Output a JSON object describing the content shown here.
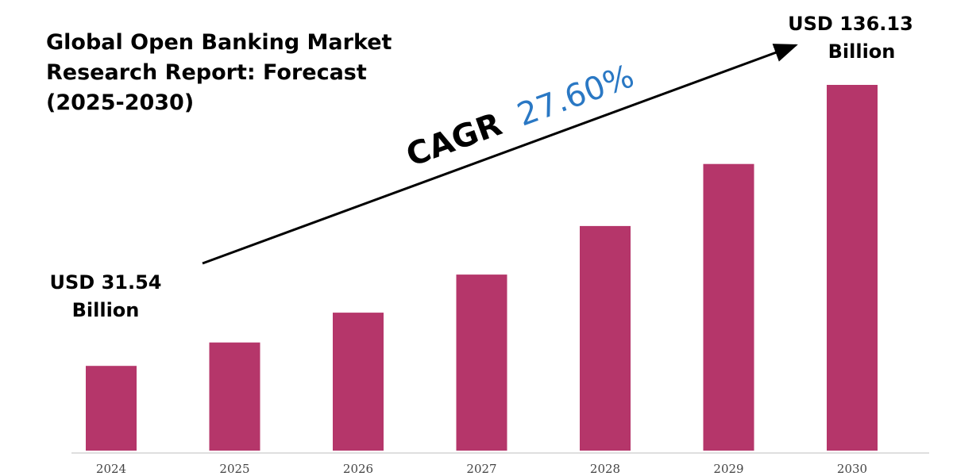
{
  "chart_data": {
    "type": "bar",
    "title": [
      "Global Open Banking Market",
      "Research Report: Forecast",
      "(2025-2030)"
    ],
    "categories": [
      "2024",
      "2025",
      "2026",
      "2027",
      "2028",
      "2029",
      "2030"
    ],
    "values": [
      31.54,
      40.25,
      51.35,
      65.52,
      83.6,
      106.68,
      136.13
    ],
    "unit": "USD Billion",
    "ylim": [
      0,
      150
    ],
    "grid": false,
    "legend": "none",
    "annotations": {
      "first": [
        "USD 31.54",
        "Billion"
      ],
      "last": [
        "USD 136.13",
        "Billion"
      ],
      "cagr_prefix": "CAGR",
      "cagr_value": "27.60%"
    },
    "colors": {
      "bar": "#b5366a",
      "cagr_value": "#2a78c4",
      "arrow": "#000000",
      "axis": "#bfbfbf"
    }
  }
}
